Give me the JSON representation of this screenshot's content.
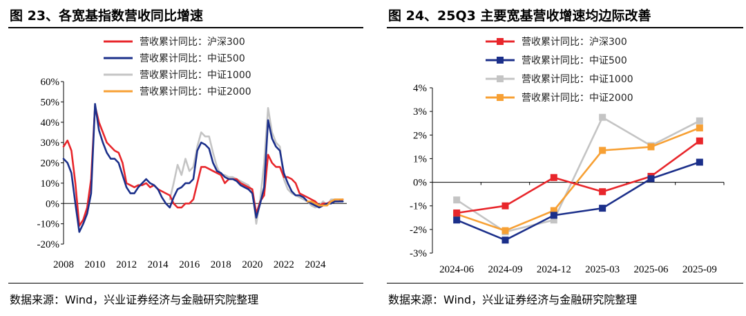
{
  "left": {
    "title": "图 23、各宽基指数营收同比增速",
    "source": "数据来源：Wind，兴业证券经济与金融研究院整理"
  },
  "right": {
    "title": "图 24、25Q3 主要宽基营收增速均边际改善",
    "source": "数据来源：Wind，兴业证券经济与金融研究院整理"
  },
  "colors": {
    "hs300": "#e8262b",
    "zz500": "#1b2f8a",
    "zz1000": "#c4c4c4",
    "zz2000": "#f7a034"
  },
  "chart_data": [
    {
      "type": "line",
      "title": "各宽基指数营收同比增速",
      "xlabel": "",
      "ylabel": "",
      "ylim": [
        -20,
        60
      ],
      "yticks": [
        "60%",
        "50%",
        "40%",
        "30%",
        "20%",
        "10%",
        "0%",
        "-10%",
        "-20%"
      ],
      "xlim": [
        2008,
        2026
      ],
      "xticks": [
        "2008",
        "2010",
        "2012",
        "2014",
        "2016",
        "2018",
        "2020",
        "2022",
        "2024"
      ],
      "legend_position": "top",
      "series": [
        {
          "name": "营收累计同比：沪深300",
          "key": "hs300",
          "x": [
            2008.0,
            2008.25,
            2008.5,
            2008.75,
            2009.0,
            2009.25,
            2009.5,
            2009.75,
            2010.0,
            2010.25,
            2010.5,
            2010.75,
            2011.0,
            2011.25,
            2011.5,
            2011.75,
            2012.0,
            2012.25,
            2012.5,
            2012.75,
            2013.0,
            2013.25,
            2013.5,
            2013.75,
            2014.0,
            2014.25,
            2014.5,
            2014.75,
            2015.0,
            2015.25,
            2015.5,
            2015.75,
            2016.0,
            2016.25,
            2016.5,
            2016.75,
            2017.0,
            2017.25,
            2017.5,
            2017.75,
            2018.0,
            2018.25,
            2018.5,
            2018.75,
            2019.0,
            2019.25,
            2019.5,
            2019.75,
            2020.0,
            2020.25,
            2020.5,
            2020.75,
            2021.0,
            2021.25,
            2021.5,
            2021.75,
            2022.0,
            2022.25,
            2022.5,
            2022.75,
            2023.0,
            2023.25,
            2023.5,
            2023.75,
            2024.0,
            2024.25,
            2024.5,
            2024.75,
            2025.0,
            2025.25,
            2025.5,
            2025.75
          ],
          "y": [
            28,
            31,
            26,
            10,
            -11,
            -8,
            -2,
            12,
            48,
            40,
            35,
            30,
            28,
            26,
            25,
            20,
            10,
            9,
            8,
            9,
            9,
            10,
            8,
            9,
            7,
            6,
            5,
            4,
            0,
            -2,
            -2,
            0,
            0,
            2,
            10,
            18,
            18,
            17,
            16,
            15,
            14,
            10,
            12,
            12,
            12,
            10,
            9,
            8,
            7,
            -5,
            1,
            4,
            24,
            20,
            18,
            18,
            13,
            13,
            12,
            10,
            5,
            4,
            3,
            2,
            1,
            -1,
            0,
            0,
            1,
            1,
            1,
            2
          ]
        },
        {
          "name": "营收累计同比：中证500",
          "key": "zz500",
          "x": [
            2008.0,
            2008.25,
            2008.5,
            2008.75,
            2009.0,
            2009.25,
            2009.5,
            2009.75,
            2010.0,
            2010.25,
            2010.5,
            2010.75,
            2011.0,
            2011.25,
            2011.5,
            2011.75,
            2012.0,
            2012.25,
            2012.5,
            2012.75,
            2013.0,
            2013.25,
            2013.5,
            2013.75,
            2014.0,
            2014.25,
            2014.5,
            2014.75,
            2015.0,
            2015.25,
            2015.5,
            2015.75,
            2016.0,
            2016.25,
            2016.5,
            2016.75,
            2017.0,
            2017.25,
            2017.5,
            2017.75,
            2018.0,
            2018.25,
            2018.5,
            2018.75,
            2019.0,
            2019.25,
            2019.5,
            2019.75,
            2020.0,
            2020.25,
            2020.5,
            2020.75,
            2021.0,
            2021.25,
            2021.5,
            2021.75,
            2022.0,
            2022.25,
            2022.5,
            2022.75,
            2023.0,
            2023.25,
            2023.5,
            2023.75,
            2024.0,
            2024.25,
            2024.5,
            2024.75,
            2025.0,
            2025.25,
            2025.5,
            2025.75
          ],
          "y": [
            22,
            20,
            15,
            0,
            -14,
            -10,
            -5,
            5,
            49,
            36,
            30,
            25,
            22,
            22,
            20,
            14,
            8,
            5,
            5,
            8,
            10,
            12,
            10,
            9,
            7,
            3,
            0,
            -2,
            3,
            7,
            8,
            10,
            10,
            12,
            26,
            30,
            29,
            27,
            20,
            16,
            15,
            13,
            12,
            12,
            11,
            9,
            8,
            7,
            5,
            -7,
            0,
            8,
            41,
            32,
            28,
            26,
            15,
            10,
            6,
            4,
            4,
            3,
            1,
            0,
            -1,
            -2,
            -1,
            0,
            0,
            1,
            1,
            1
          ]
        },
        {
          "name": "营收累计同比：中证1000",
          "key": "zz1000",
          "x": [
            2014.75,
            2015.0,
            2015.25,
            2015.5,
            2015.75,
            2016.0,
            2016.25,
            2016.5,
            2016.75,
            2017.0,
            2017.25,
            2017.5,
            2017.75,
            2018.0,
            2018.25,
            2018.5,
            2018.75,
            2019.0,
            2019.25,
            2019.5,
            2019.75,
            2020.0,
            2020.25,
            2020.5,
            2020.75,
            2021.0,
            2021.25,
            2021.5,
            2021.75,
            2022.0,
            2022.25,
            2022.5,
            2022.75,
            2023.0,
            2023.25,
            2023.5,
            2023.75,
            2024.0,
            2024.25,
            2024.5,
            2024.75,
            2025.0,
            2025.25,
            2025.5,
            2025.75
          ],
          "y": [
            2,
            10,
            19,
            14,
            22,
            16,
            18,
            28,
            35,
            33,
            33,
            25,
            18,
            14,
            14,
            13,
            13,
            12,
            11,
            10,
            9,
            6,
            -10,
            2,
            20,
            47,
            35,
            30,
            28,
            12,
            7,
            5,
            4,
            3,
            2,
            1,
            -1,
            -2,
            -1,
            1,
            -1,
            2,
            2,
            2,
            2
          ]
        },
        {
          "name": "营收累计同比：中证2000",
          "key": "zz2000",
          "x": [
            2023.5,
            2023.75,
            2024.0,
            2024.25,
            2024.5,
            2024.75,
            2025.0,
            2025.25,
            2025.5,
            2025.75
          ],
          "y": [
            1,
            1,
            0,
            -1,
            -1,
            -1,
            1,
            2,
            2,
            2
          ]
        }
      ]
    },
    {
      "type": "line",
      "title": "25Q3 主要宽基营收增速均边际改善",
      "xlabel": "",
      "ylabel": "",
      "ylim": [
        -3,
        4
      ],
      "yticks": [
        "4%",
        "3%",
        "2%",
        "1%",
        "0%",
        "-1%",
        "-2%",
        "-3%"
      ],
      "categories": [
        "2024-06",
        "2024-09",
        "2024-12",
        "2025-03",
        "2025-06",
        "2025-09"
      ],
      "legend_position": "top",
      "series": [
        {
          "name": "营收累计同比：沪深300",
          "key": "hs300",
          "marker": "square",
          "values": [
            -1.3,
            -1.0,
            0.2,
            -0.4,
            0.25,
            1.75
          ]
        },
        {
          "name": "营收累计同比：中证500",
          "key": "zz500",
          "marker": "square",
          "values": [
            -1.6,
            -2.45,
            -1.4,
            -1.1,
            0.15,
            0.85
          ]
        },
        {
          "name": "营收累计同比：中证1000",
          "key": "zz1000",
          "marker": "square",
          "values": [
            -0.75,
            -2.1,
            -1.6,
            2.75,
            1.55,
            2.6
          ]
        },
        {
          "name": "营收累计同比：中证2000",
          "key": "zz2000",
          "marker": "square",
          "values": [
            -1.35,
            -2.05,
            -1.2,
            1.35,
            1.5,
            2.3
          ]
        }
      ]
    }
  ]
}
